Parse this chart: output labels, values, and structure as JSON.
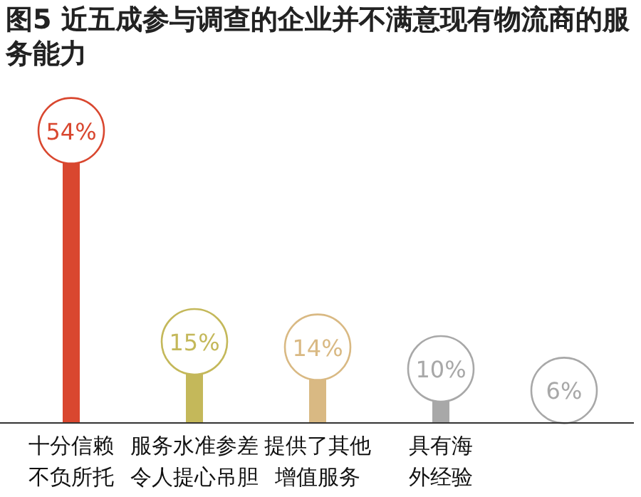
{
  "chart_data": {
    "type": "lollipop",
    "title": "图5  近五成参与调查的企业并不满意现有物流商的服务能力",
    "categories": [
      "十分信赖不负所托",
      "服务水准参差令人提心吊胆",
      "提供了其他增值服务",
      "具有海外经验",
      null
    ],
    "values": [
      54,
      15,
      14,
      10,
      6
    ],
    "colors": [
      "#d9472f",
      "#c4b85a",
      "#d9b983",
      "#a8a8a8",
      "#a8a8a8"
    ],
    "value_labels": [
      "54%",
      "15%",
      "14%",
      "10%",
      "6%"
    ]
  }
}
